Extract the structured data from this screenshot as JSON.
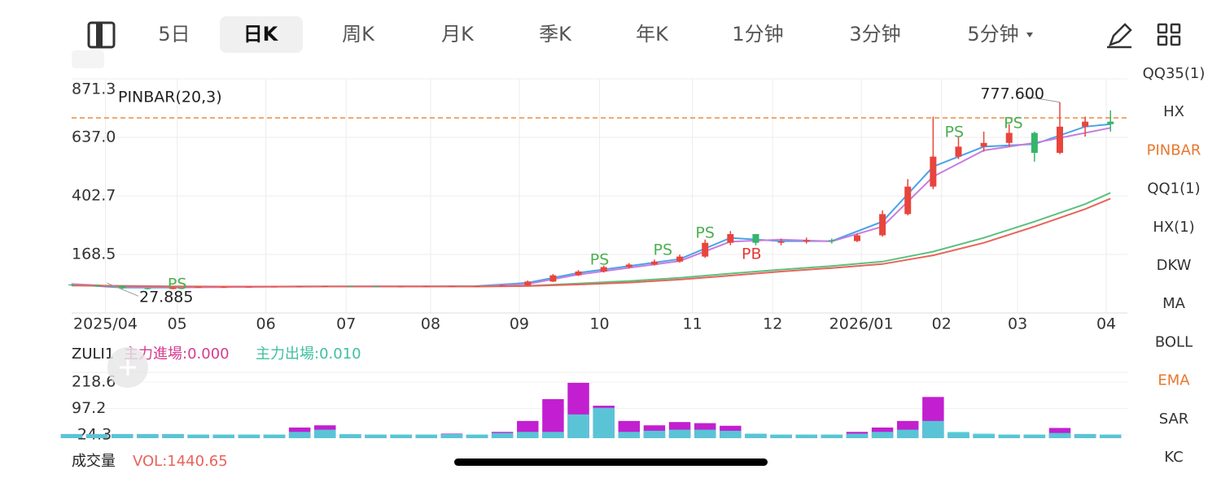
{
  "tabs": [
    "5日",
    "日K",
    "周K",
    "月K",
    "季K",
    "年K",
    "1分钟",
    "3分钟",
    "5分钟"
  ],
  "active_tab": 1,
  "indicators": [
    "QQ35(1)",
    "HX",
    "PINBAR",
    "QQ1(1)",
    "HX(1)",
    "DKW",
    "MA",
    "BOLL",
    "EMA",
    "SAR",
    "KC"
  ],
  "highlighted_indicators": [
    2,
    8
  ],
  "volume_title": "成交量",
  "volume_value": "VOL:1440.65",
  "chart_data": [
    {
      "type": "candlestick",
      "title": "PINBAR(20,3)",
      "xlim": [
        0,
        250
      ],
      "xticks": [
        {
          "value": 8,
          "label": "2025/04"
        },
        {
          "value": 25,
          "label": "05"
        },
        {
          "value": 46,
          "label": "06"
        },
        {
          "value": 65,
          "label": "07"
        },
        {
          "value": 85,
          "label": "08"
        },
        {
          "value": 106,
          "label": "09"
        },
        {
          "value": 125,
          "label": "10"
        },
        {
          "value": 147,
          "label": "11"
        },
        {
          "value": 166,
          "label": "12"
        },
        {
          "value": 187,
          "label": "2026/01"
        },
        {
          "value": 206,
          "label": "02"
        },
        {
          "value": 224,
          "label": "03"
        },
        {
          "value": 245,
          "label": "04"
        }
      ],
      "ylim": [
        -65.8,
        871.3
      ],
      "yticks": [
        871.3,
        {
          "value": 637.0,
          "label": "637.0"
        },
        402.7,
        168.5
      ],
      "grid": true,
      "up_color": "#e8453c",
      "down_color": "#35b56a",
      "x": [
        0,
        6,
        12,
        18,
        24,
        30,
        36,
        42,
        48,
        54,
        60,
        66,
        72,
        78,
        84,
        90,
        96,
        102,
        108,
        114,
        120,
        126,
        132,
        138,
        144,
        150,
        156,
        162,
        168,
        174,
        180,
        186,
        192,
        198,
        204,
        210,
        216,
        222,
        228,
        234,
        240,
        246
      ],
      "open": [
        48,
        45,
        42,
        33,
        30,
        36,
        38,
        38,
        39,
        40,
        41,
        42,
        41,
        40,
        40,
        41,
        42,
        42,
        45,
        60,
        85,
        100,
        118,
        128,
        140,
        160,
        215,
        250,
        215,
        220,
        226,
        222,
        245,
        330,
        440,
        560,
        600,
        615,
        655,
        575,
        680,
        700
      ],
      "high": [
        50,
        47,
        43,
        34,
        37,
        39,
        40,
        40,
        41,
        42,
        43,
        43,
        42,
        41,
        42,
        43,
        43,
        47,
        64,
        90,
        106,
        124,
        134,
        148,
        168,
        228,
        262,
        250,
        232,
        236,
        232,
        252,
        345,
        470,
        720,
        640,
        660,
        690,
        660,
        777.6,
        720,
        745
      ],
      "low": [
        44,
        40,
        30,
        27.885,
        29,
        35,
        37,
        37,
        38,
        39,
        40,
        40,
        39,
        39,
        39,
        40,
        41,
        41,
        44,
        58,
        82,
        96,
        112,
        124,
        136,
        155,
        205,
        205,
        205,
        212,
        212,
        218,
        240,
        325,
        430,
        550,
        580,
        600,
        540,
        570,
        640,
        660
      ],
      "close": [
        45,
        42,
        33,
        30,
        36,
        38,
        38,
        39,
        40,
        41,
        42,
        41,
        40,
        40,
        41,
        42,
        42,
        45,
        60,
        85,
        100,
        118,
        128,
        140,
        160,
        215,
        250,
        215,
        220,
        226,
        222,
        245,
        330,
        440,
        560,
        600,
        615,
        655,
        575,
        680,
        700,
        690
      ],
      "high_label": "777.600",
      "low_label": "27.885",
      "ref_line": {
        "value": 715,
        "color": "#f08a3c"
      },
      "lines": {
        "x": [
          0,
          12,
          24,
          36,
          48,
          60,
          72,
          84,
          96,
          108,
          120,
          132,
          144,
          156,
          168,
          180,
          192,
          204,
          216,
          228,
          240,
          246
        ],
        "series": [
          {
            "color": "#4aa3e8",
            "values": [
              48,
              36,
              36,
              38,
              40,
              41,
              41,
              41,
              42,
              55,
              95,
              122,
              150,
              235,
              222,
              222,
              300,
              520,
              600,
              610,
              680,
              690
            ]
          },
          {
            "color": "#c77dde",
            "values": [
              50,
              40,
              37,
              38,
              39,
              40,
              41,
              41,
              41,
              50,
              88,
              115,
              142,
              220,
              228,
              221,
              280,
              480,
              585,
              615,
              655,
              675
            ]
          },
          {
            "color": "#5bc080",
            "values": [
              45,
              43,
              41,
              40,
              40,
              40,
              40,
              40,
              41,
              43,
              52,
              62,
              75,
              92,
              108,
              122,
              140,
              180,
              235,
              300,
              370,
              415
            ]
          },
          {
            "color": "#e8645a",
            "values": [
              44,
              42,
              40,
              40,
              40,
              40,
              40,
              40,
              40,
              42,
              48,
              56,
              68,
              84,
              100,
              114,
              130,
              165,
              215,
              280,
              350,
              392
            ]
          }
        ]
      },
      "signals": [
        {
          "label": "PS",
          "x": 25,
          "y": 48,
          "color": "#4caf50"
        },
        {
          "label": "PS",
          "x": 125,
          "y": 145,
          "color": "#4caf50"
        },
        {
          "label": "PS",
          "x": 140,
          "y": 185,
          "color": "#4caf50"
        },
        {
          "label": "PS",
          "x": 150,
          "y": 253,
          "color": "#4caf50"
        },
        {
          "label": "PB",
          "x": 161,
          "y": 168,
          "color": "#e53935"
        },
        {
          "label": "PS",
          "x": 209,
          "y": 657,
          "color": "#4caf50"
        },
        {
          "label": "PS",
          "x": 223,
          "y": 692,
          "color": "#4caf50"
        }
      ]
    },
    {
      "type": "bar",
      "title": "ZULI1",
      "xlim": [
        0,
        250
      ],
      "ylim": [
        -50,
        263
      ],
      "yticks": [
        218.6,
        97.2,
        -24.3
      ],
      "x": [
        0,
        6,
        12,
        18,
        24,
        30,
        36,
        42,
        48,
        54,
        60,
        66,
        72,
        78,
        84,
        90,
        96,
        102,
        108,
        114,
        120,
        126,
        132,
        138,
        144,
        150,
        156,
        162,
        168,
        174,
        180,
        186,
        192,
        198,
        204,
        210,
        216,
        222,
        228,
        234,
        240,
        246
      ],
      "series": [
        {
          "name": "主力進場:0.000",
          "color": "#c21fd0",
          "values": [
            -20,
            -20,
            -20,
            -20,
            -20,
            -24,
            -24,
            -24,
            -24,
            10,
            20,
            -22,
            -24,
            -24,
            -24,
            -18,
            -24,
            -10,
            40,
            140,
            215,
            110,
            40,
            20,
            35,
            30,
            18,
            -20,
            -24,
            -24,
            -24,
            -10,
            10,
            40,
            150,
            -15,
            -22,
            -24,
            -24,
            8,
            -20,
            -24
          ]
        },
        {
          "name": "主力出場:0.010",
          "color": "#4fd6d6",
          "values": [
            -20,
            -20,
            -20,
            -20,
            -20,
            -22,
            -22,
            -22,
            -22,
            -10,
            0,
            -20,
            -22,
            -22,
            -22,
            -20,
            -22,
            -15,
            -10,
            -10,
            70,
            100,
            -10,
            -5,
            0,
            0,
            -5,
            -18,
            -22,
            -22,
            -22,
            -18,
            -10,
            0,
            40,
            -10,
            -18,
            -22,
            -22,
            -15,
            -20,
            -22
          ]
        }
      ]
    }
  ]
}
